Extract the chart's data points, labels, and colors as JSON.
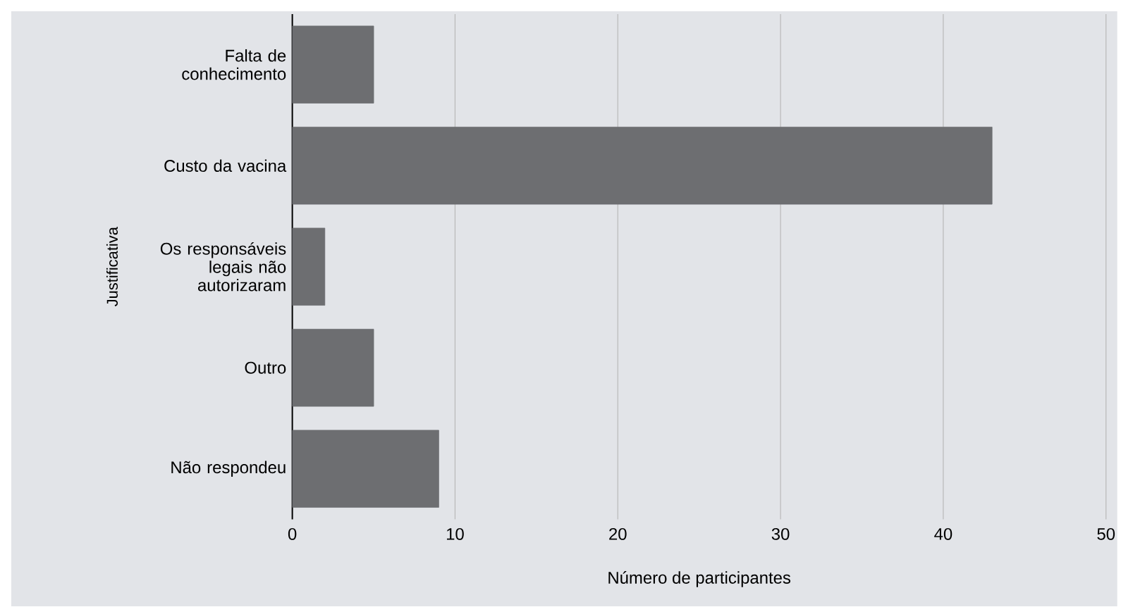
{
  "chart_data": {
    "type": "bar",
    "orientation": "horizontal",
    "xlabel": "Número de participantes",
    "ylabel": "Justificativa",
    "categories": [
      "Falta de conhecimento",
      "Custo da vacina",
      "Os responsáveis legais não autorizaram",
      "Outro",
      "Não respondeu"
    ],
    "values": [
      5,
      43,
      2,
      5,
      9
    ],
    "color": "#6d6e71",
    "xlim": [
      0,
      50
    ],
    "xticks": [
      0,
      10,
      20,
      30,
      40,
      50
    ],
    "grid": "x"
  }
}
